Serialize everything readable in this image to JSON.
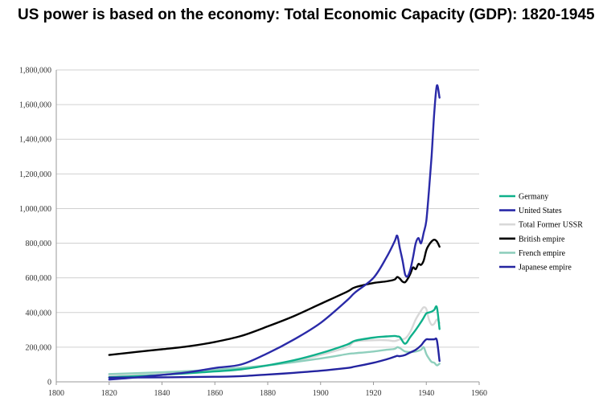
{
  "chart_data": {
    "type": "line",
    "title": "US power is based on the economy: Total Economic Capacity (GDP): 1820-1945",
    "xlabel": "",
    "ylabel": "",
    "xlim": [
      1800,
      1960
    ],
    "ylim": [
      0,
      1800000
    ],
    "x_ticks": [
      "1800",
      "1820",
      "1840",
      "1860",
      "1880",
      "1900",
      "1920",
      "1940",
      "1960"
    ],
    "y_ticks": [
      "0",
      "200,000",
      "400,000",
      "600,000",
      "800,000",
      "1,000,000",
      "1,200,000",
      "1,400,000",
      "1,600,000",
      "1,800,000"
    ],
    "grid": "horizontal",
    "legend_position": "right",
    "series": [
      {
        "name": "Germany",
        "color": "#0fb08a",
        "points": [
          [
            1820,
            27000
          ],
          [
            1840,
            40000
          ],
          [
            1860,
            60000
          ],
          [
            1870,
            72000
          ],
          [
            1880,
            95000
          ],
          [
            1890,
            125000
          ],
          [
            1900,
            165000
          ],
          [
            1910,
            215000
          ],
          [
            1913,
            237000
          ],
          [
            1920,
            255000
          ],
          [
            1925,
            262000
          ],
          [
            1928,
            265000
          ],
          [
            1929,
            262000
          ],
          [
            1930,
            258000
          ],
          [
            1932,
            220000
          ],
          [
            1934,
            260000
          ],
          [
            1936,
            300000
          ],
          [
            1938,
            345000
          ],
          [
            1939,
            370000
          ],
          [
            1940,
            395000
          ],
          [
            1941,
            400000
          ],
          [
            1942,
            405000
          ],
          [
            1943,
            415000
          ],
          [
            1944,
            430000
          ],
          [
            1945,
            305000
          ]
        ]
      },
      {
        "name": "United States",
        "color": "#2a2aa8",
        "points": [
          [
            1820,
            13000
          ],
          [
            1830,
            25000
          ],
          [
            1840,
            40000
          ],
          [
            1850,
            55000
          ],
          [
            1860,
            80000
          ],
          [
            1870,
            100000
          ],
          [
            1880,
            165000
          ],
          [
            1890,
            245000
          ],
          [
            1900,
            340000
          ],
          [
            1910,
            470000
          ],
          [
            1913,
            515000
          ],
          [
            1920,
            600000
          ],
          [
            1925,
            720000
          ],
          [
            1928,
            810000
          ],
          [
            1929,
            843000
          ],
          [
            1930,
            770000
          ],
          [
            1931,
            700000
          ],
          [
            1932,
            620000
          ],
          [
            1933,
            610000
          ],
          [
            1934,
            650000
          ],
          [
            1935,
            720000
          ],
          [
            1936,
            800000
          ],
          [
            1937,
            830000
          ],
          [
            1938,
            800000
          ],
          [
            1939,
            860000
          ],
          [
            1940,
            930000
          ],
          [
            1941,
            1100000
          ],
          [
            1942,
            1300000
          ],
          [
            1943,
            1550000
          ],
          [
            1944,
            1710000
          ],
          [
            1945,
            1640000
          ]
        ]
      },
      {
        "name": "Total Former USSR",
        "color": "#d8d8d8",
        "points": [
          [
            1820,
            38000
          ],
          [
            1840,
            50000
          ],
          [
            1860,
            65000
          ],
          [
            1870,
            75000
          ],
          [
            1880,
            95000
          ],
          [
            1890,
            120000
          ],
          [
            1900,
            155000
          ],
          [
            1910,
            200000
          ],
          [
            1913,
            232000
          ],
          [
            1920,
            240000
          ],
          [
            1925,
            240000
          ],
          [
            1928,
            235000
          ],
          [
            1930,
            245000
          ],
          [
            1932,
            250000
          ],
          [
            1934,
            290000
          ],
          [
            1936,
            360000
          ],
          [
            1938,
            410000
          ],
          [
            1939,
            430000
          ],
          [
            1940,
            420000
          ],
          [
            1941,
            360000
          ],
          [
            1942,
            330000
          ],
          [
            1943,
            335000
          ],
          [
            1944,
            360000
          ],
          [
            1945,
            340000
          ]
        ]
      },
      {
        "name": "British empire",
        "color": "#000000",
        "points": [
          [
            1820,
            155000
          ],
          [
            1830,
            172000
          ],
          [
            1840,
            188000
          ],
          [
            1850,
            205000
          ],
          [
            1860,
            230000
          ],
          [
            1870,
            265000
          ],
          [
            1880,
            320000
          ],
          [
            1890,
            380000
          ],
          [
            1900,
            450000
          ],
          [
            1910,
            520000
          ],
          [
            1913,
            545000
          ],
          [
            1920,
            570000
          ],
          [
            1925,
            580000
          ],
          [
            1928,
            590000
          ],
          [
            1929,
            605000
          ],
          [
            1930,
            595000
          ],
          [
            1931,
            578000
          ],
          [
            1932,
            575000
          ],
          [
            1933,
            595000
          ],
          [
            1934,
            625000
          ],
          [
            1935,
            660000
          ],
          [
            1936,
            650000
          ],
          [
            1937,
            680000
          ],
          [
            1938,
            675000
          ],
          [
            1939,
            700000
          ],
          [
            1940,
            760000
          ],
          [
            1941,
            790000
          ],
          [
            1942,
            810000
          ],
          [
            1943,
            820000
          ],
          [
            1944,
            810000
          ],
          [
            1945,
            780000
          ]
        ]
      },
      {
        "name": "French empire",
        "color": "#8fcfbd",
        "points": [
          [
            1820,
            45000
          ],
          [
            1840,
            55000
          ],
          [
            1860,
            70000
          ],
          [
            1880,
            95000
          ],
          [
            1900,
            135000
          ],
          [
            1910,
            160000
          ],
          [
            1913,
            165000
          ],
          [
            1920,
            175000
          ],
          [
            1925,
            185000
          ],
          [
            1928,
            190000
          ],
          [
            1929,
            200000
          ],
          [
            1930,
            195000
          ],
          [
            1932,
            175000
          ],
          [
            1934,
            172000
          ],
          [
            1936,
            175000
          ],
          [
            1938,
            185000
          ],
          [
            1939,
            200000
          ],
          [
            1940,
            160000
          ],
          [
            1941,
            135000
          ],
          [
            1942,
            115000
          ],
          [
            1943,
            110000
          ],
          [
            1944,
            95000
          ],
          [
            1945,
            105000
          ]
        ]
      },
      {
        "name": "Japanese empire",
        "color": "#2424a0",
        "points": [
          [
            1820,
            24000
          ],
          [
            1840,
            26000
          ],
          [
            1860,
            29000
          ],
          [
            1870,
            33000
          ],
          [
            1880,
            42000
          ],
          [
            1890,
            52000
          ],
          [
            1900,
            64000
          ],
          [
            1910,
            80000
          ],
          [
            1913,
            88000
          ],
          [
            1920,
            110000
          ],
          [
            1925,
            130000
          ],
          [
            1928,
            145000
          ],
          [
            1929,
            150000
          ],
          [
            1930,
            148000
          ],
          [
            1932,
            155000
          ],
          [
            1934,
            170000
          ],
          [
            1936,
            185000
          ],
          [
            1938,
            210000
          ],
          [
            1939,
            230000
          ],
          [
            1940,
            245000
          ],
          [
            1941,
            245000
          ],
          [
            1942,
            245000
          ],
          [
            1943,
            245000
          ],
          [
            1944,
            240000
          ],
          [
            1945,
            120000
          ]
        ]
      }
    ]
  }
}
